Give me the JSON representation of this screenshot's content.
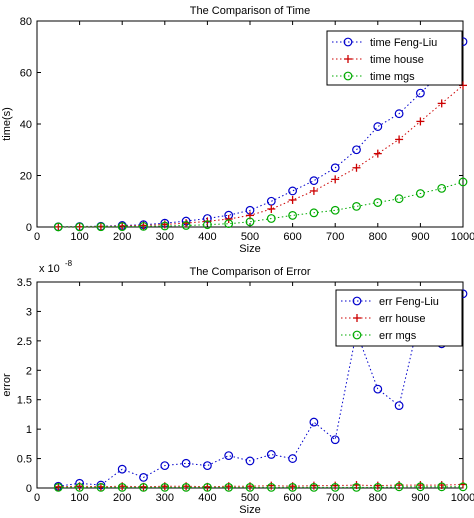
{
  "chart_data": [
    {
      "type": "line",
      "title": "The Comparison of Time",
      "xlabel": "Size",
      "ylabel": "time(s)",
      "xlim": [
        0,
        1000
      ],
      "ylim": [
        0,
        80
      ],
      "xticks": [
        0,
        100,
        200,
        300,
        400,
        500,
        600,
        700,
        800,
        900,
        1000
      ],
      "yticks": [
        0,
        20,
        40,
        60,
        80
      ],
      "exponent_label": "",
      "grid": false,
      "legend_position": "top-right",
      "x": [
        50,
        100,
        150,
        200,
        250,
        300,
        350,
        400,
        450,
        500,
        550,
        600,
        650,
        700,
        750,
        800,
        850,
        900,
        950,
        1000
      ],
      "series": [
        {
          "name": "time Feng-Liu",
          "color": "#0000cc",
          "marker": "circle",
          "values": [
            0.1,
            0.2,
            0.3,
            0.6,
            0.9,
            1.5,
            2.3,
            3.3,
            4.6,
            6.5,
            10,
            14,
            18,
            23,
            30,
            39,
            44,
            52,
            60,
            72
          ]
        },
        {
          "name": "time house",
          "color": "#cc0000",
          "marker": "plus",
          "values": [
            0.05,
            0.1,
            0.2,
            0.4,
            0.6,
            1.0,
            1.5,
            2.2,
            3.1,
            4.5,
            7,
            10.5,
            14,
            18.5,
            23,
            28.5,
            34,
            41,
            48,
            55
          ]
        },
        {
          "name": "time mgs",
          "color": "#00aa00",
          "marker": "circle",
          "values": [
            0.03,
            0.05,
            0.1,
            0.15,
            0.25,
            0.4,
            0.6,
            0.9,
            1.3,
            2.0,
            3.3,
            4.5,
            5.5,
            6.5,
            8,
            9.5,
            11,
            13,
            15,
            17.5
          ]
        }
      ]
    },
    {
      "type": "line",
      "title": "The Comparison of Error",
      "xlabel": "Size",
      "ylabel": "error",
      "xlim": [
        0,
        1000
      ],
      "ylim": [
        0,
        3.5
      ],
      "xticks": [
        0,
        100,
        200,
        300,
        400,
        500,
        600,
        700,
        800,
        900,
        1000
      ],
      "yticks": [
        0,
        0.5,
        1,
        1.5,
        2,
        2.5,
        3,
        3.5
      ],
      "exponent_label": "x 10",
      "exponent_power": "-8",
      "grid": false,
      "legend_position": "top-right",
      "x": [
        50,
        100,
        150,
        200,
        250,
        300,
        350,
        400,
        450,
        500,
        550,
        600,
        650,
        700,
        750,
        800,
        850,
        900,
        950,
        1000
      ],
      "series": [
        {
          "name": "err Feng-Liu",
          "color": "#0000cc",
          "marker": "circle",
          "values": [
            0.03,
            0.08,
            0.05,
            0.32,
            0.18,
            0.38,
            0.42,
            0.38,
            0.55,
            0.46,
            0.57,
            0.5,
            1.12,
            0.82,
            2.65,
            1.68,
            1.4,
            2.95,
            2.45,
            3.3
          ]
        },
        {
          "name": "err house",
          "color": "#cc0000",
          "marker": "plus",
          "values": [
            0.02,
            0.03,
            0.02,
            0.03,
            0.02,
            0.03,
            0.03,
            0.02,
            0.03,
            0.03,
            0.04,
            0.03,
            0.04,
            0.04,
            0.05,
            0.04,
            0.05,
            0.05,
            0.05,
            0.06
          ]
        },
        {
          "name": "err mgs",
          "color": "#00aa00",
          "marker": "circle",
          "values": [
            0.01,
            0.01,
            0.01,
            0.01,
            0.01,
            0.01,
            0.01,
            0.01,
            0.01,
            0.01,
            0.01,
            0.01,
            0.01,
            0.01,
            0.01,
            0.01,
            0.02,
            0.02,
            0.02,
            0.02
          ]
        }
      ]
    }
  ]
}
